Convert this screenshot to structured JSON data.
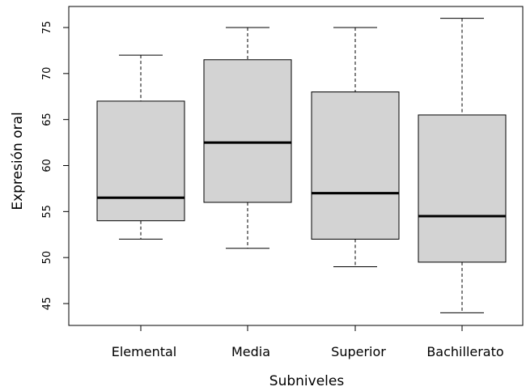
{
  "chart_data": {
    "type": "boxplot",
    "title": "",
    "xlabel": "Subniveles",
    "ylabel": "Expresión oral",
    "ylim": [
      43,
      77
    ],
    "yticks": [
      45,
      50,
      55,
      60,
      65,
      70,
      75
    ],
    "grid": false,
    "box_color": "#d3d3d3",
    "categories": [
      "Elemental",
      "Media",
      "Superior",
      "Bachillerato"
    ],
    "boxes": [
      {
        "category": "Elemental",
        "whisker_low": 52,
        "q1": 54,
        "median": 56.5,
        "q3": 67,
        "whisker_high": 72
      },
      {
        "category": "Media",
        "whisker_low": 51,
        "q1": 56,
        "median": 62.5,
        "q3": 71.5,
        "whisker_high": 75
      },
      {
        "category": "Superior",
        "whisker_low": 49,
        "q1": 52,
        "median": 57,
        "q3": 68,
        "whisker_high": 75
      },
      {
        "category": "Bachillerato",
        "whisker_low": 44,
        "q1": 49.5,
        "median": 54.5,
        "q3": 65.5,
        "whisker_high": 76
      }
    ]
  }
}
